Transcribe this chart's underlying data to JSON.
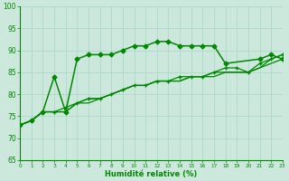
{
  "bg_color": "#cce8dd",
  "grid_color": "#aad4c8",
  "line_color": "#008800",
  "marker_color": "#008800",
  "xlabel": "Humidité relative (%)",
  "xlabel_color": "#008800",
  "tick_color": "#008800",
  "ylim": [
    65,
    100
  ],
  "xlim": [
    0,
    23
  ],
  "yticks": [
    65,
    70,
    75,
    80,
    85,
    90,
    95,
    100
  ],
  "xticks": [
    0,
    1,
    2,
    3,
    4,
    5,
    6,
    7,
    8,
    9,
    10,
    11,
    12,
    13,
    14,
    15,
    16,
    17,
    18,
    19,
    20,
    21,
    22,
    23
  ],
  "series": [
    {
      "x": [
        0,
        1,
        2,
        3,
        4,
        5,
        6,
        7,
        8,
        9,
        10,
        11,
        12,
        13,
        14,
        15,
        16,
        17,
        18,
        21,
        22,
        23
      ],
      "y": [
        73,
        74,
        76,
        84,
        76,
        88,
        89,
        89,
        89,
        90,
        91,
        91,
        92,
        92,
        91,
        91,
        91,
        91,
        87,
        88,
        89,
        88
      ],
      "marker": "D",
      "markersize": 2.5,
      "linewidth": 1.1
    },
    {
      "x": [
        0,
        1,
        2,
        3,
        4,
        5,
        6,
        7,
        8,
        9,
        10,
        11,
        12,
        13,
        14,
        15,
        16,
        17,
        18,
        19,
        20,
        21,
        22,
        23
      ],
      "y": [
        73,
        74,
        76,
        76,
        77,
        78,
        79,
        79,
        80,
        81,
        82,
        82,
        83,
        83,
        84,
        84,
        84,
        85,
        86,
        86,
        85,
        87,
        88,
        89
      ],
      "marker": "+",
      "markersize": 3.5,
      "linewidth": 0.9
    },
    {
      "x": [
        0,
        1,
        2,
        3,
        4,
        5,
        6,
        7,
        8,
        9,
        10,
        11,
        12,
        13,
        14,
        15,
        16,
        17,
        18,
        19,
        20,
        21,
        22,
        23
      ],
      "y": [
        73,
        74,
        76,
        76,
        76,
        78,
        78,
        79,
        80,
        81,
        82,
        82,
        83,
        83,
        83,
        84,
        84,
        84,
        85,
        85,
        85,
        86,
        87,
        88
      ],
      "marker": null,
      "markersize": 0,
      "linewidth": 0.9
    },
    {
      "x": [
        0,
        1,
        2,
        3,
        4,
        5,
        6,
        7,
        8,
        9,
        10,
        11,
        12,
        13,
        14,
        15,
        16,
        17,
        18,
        19,
        20,
        21,
        22,
        23
      ],
      "y": [
        73,
        74,
        76,
        76,
        76,
        78,
        79,
        79,
        80,
        81,
        82,
        82,
        83,
        83,
        83,
        84,
        84,
        85,
        85,
        85,
        85,
        86,
        88,
        89
      ],
      "marker": null,
      "markersize": 0,
      "linewidth": 0.9
    }
  ]
}
